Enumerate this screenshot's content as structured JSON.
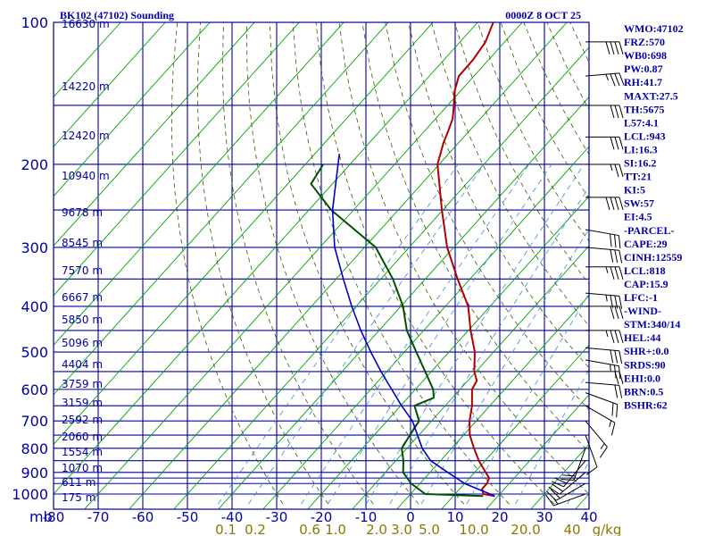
{
  "header": {
    "title": "BK102 (47102) Sounding",
    "time": "0000Z  8 OCT 25"
  },
  "axes": {
    "pressure_unit": "mb",
    "pressure_ticks": [
      "100",
      "200",
      "300",
      "400",
      "500",
      "600",
      "700",
      "800",
      "900",
      "1000"
    ],
    "temp_ticks": [
      "-80",
      "-70",
      "-60",
      "-50",
      "-40",
      "-30",
      "-20",
      "-10",
      "0",
      "10",
      "20",
      "30",
      "40"
    ],
    "mixing_unit": "g/kg",
    "mixing_ticks": [
      "0.1",
      "0.2",
      "0.6",
      "1.0",
      "2.0",
      "3.0",
      "5.0",
      "10.0",
      "20.0",
      "40"
    ],
    "height_labels": [
      "16630 m",
      "14220 m",
      "12420 m",
      "10940 m",
      "9678 m",
      "8545 m",
      "7570 m",
      "6667 m",
      "5850 m",
      "5096 m",
      "4404 m",
      "3759 m",
      "3159 m",
      "2592 m",
      "2060 m",
      "1554 m",
      "1070 m",
      "611 m",
      "175 m"
    ]
  },
  "colors": {
    "grid": "#0000a0",
    "temperature": "#b00000",
    "dewpoint": "#005000",
    "parcel": "#0000c0",
    "dry_adiabat": "#00a000",
    "moist_adiabat": "#3a5a00",
    "mixing_ratio": "#3a8ad8",
    "text": "#0000a0",
    "mixing_text": "#8a7a00"
  },
  "indices": [
    "WMO:47102",
    "FRZ:570",
    "WB0:698",
    "PW:0.87",
    "RH:41.7",
    "MAXT:27.5",
    "TH:5675",
    "L57:4.1",
    "LCL:943",
    "LI:16.3",
    "SI:16.2",
    "TT:21",
    "KI:5",
    "SW:57",
    "EI:4.5",
    "-PARCEL-",
    "CAPE:29",
    "CINH:12559",
    "LCL:818",
    "CAP:15.9",
    "LFC:-1",
    "-WIND-",
    "STM:340/14",
    "HEL:44",
    "SHR+:0.0",
    "SRDS:90",
    "EHI:0.0",
    "BRN:0.5",
    "BSHR:62"
  ],
  "chart_data": {
    "type": "line",
    "title": "BK102 (47102) Sounding",
    "xlabel": "",
    "ylabel": "mb",
    "xlim": [
      -80,
      40
    ],
    "ylim": [
      1000,
      100
    ],
    "y_scale": "log-pressure",
    "x_scale": "skew-T",
    "grid": true,
    "series": [
      {
        "key": "temperature",
        "points": [
          [
            100,
            -76.5
          ],
          [
            110,
            -74.3
          ],
          [
            120,
            -73.5
          ],
          [
            130,
            -73.4
          ],
          [
            140,
            -71.3
          ],
          [
            150,
            -68.6
          ],
          [
            160,
            -66.2
          ],
          [
            170,
            -64.7
          ],
          [
            180,
            -63.4
          ],
          [
            200,
            -60.4
          ],
          [
            250,
            -50.2
          ],
          [
            300,
            -41.5
          ],
          [
            350,
            -32.8
          ],
          [
            400,
            -24.9
          ],
          [
            450,
            -19.5
          ],
          [
            500,
            -14.2
          ],
          [
            550,
            -10.4
          ],
          [
            575,
            -8.0
          ],
          [
            600,
            -7.3
          ],
          [
            650,
            -4.0
          ],
          [
            700,
            -1.5
          ],
          [
            750,
            1.4
          ],
          [
            800,
            5.0
          ],
          [
            850,
            8.6
          ],
          [
            900,
            12.5
          ],
          [
            925,
            14.4
          ],
          [
            950,
            15.0
          ],
          [
            975,
            15.0
          ],
          [
            1000,
            16.3
          ],
          [
            1010,
            19.3
          ]
        ]
      },
      {
        "key": "dewpoint",
        "points": [
          [
            200,
            -86.0
          ],
          [
            220,
            -84.8
          ],
          [
            250,
            -75.0
          ],
          [
            300,
            -57.5
          ],
          [
            350,
            -47.3
          ],
          [
            400,
            -39.5
          ],
          [
            450,
            -33.8
          ],
          [
            500,
            -27.3
          ],
          [
            550,
            -21.4
          ],
          [
            600,
            -16.0
          ],
          [
            625,
            -14.2
          ],
          [
            650,
            -16.9
          ],
          [
            700,
            -12.8
          ],
          [
            750,
            -12.0
          ],
          [
            800,
            -11.2
          ],
          [
            850,
            -8.3
          ],
          [
            900,
            -6.0
          ],
          [
            950,
            -2.0
          ],
          [
            1000,
            3.3
          ],
          [
            1010,
            16.7
          ]
        ]
      },
      {
        "key": "parcel",
        "points": [
          [
            190,
            -84.5
          ],
          [
            250,
            -74.7
          ],
          [
            300,
            -66.7
          ],
          [
            350,
            -58.4
          ],
          [
            400,
            -51.0
          ],
          [
            450,
            -44.1
          ],
          [
            500,
            -37.5
          ],
          [
            550,
            -31.3
          ],
          [
            600,
            -25.3
          ],
          [
            650,
            -19.8
          ],
          [
            700,
            -14.3
          ],
          [
            800,
            -6.6
          ],
          [
            850,
            -2.2
          ],
          [
            900,
            4.0
          ],
          [
            950,
            10.0
          ],
          [
            1010,
            19.3
          ]
        ]
      }
    ],
    "wind_barbs": [
      {
        "p": 110,
        "dir": 270,
        "spd": 40
      },
      {
        "p": 130,
        "dir": 265,
        "spd": 35
      },
      {
        "p": 150,
        "dir": 270,
        "spd": 30
      },
      {
        "p": 175,
        "dir": 270,
        "spd": 30
      },
      {
        "p": 200,
        "dir": 270,
        "spd": 25
      },
      {
        "p": 235,
        "dir": 270,
        "spd": 40
      },
      {
        "p": 275,
        "dir": 280,
        "spd": 30
      },
      {
        "p": 300,
        "dir": 275,
        "spd": 30
      },
      {
        "p": 330,
        "dir": 270,
        "spd": 35
      },
      {
        "p": 375,
        "dir": 275,
        "spd": 35
      },
      {
        "p": 400,
        "dir": 270,
        "spd": 30
      },
      {
        "p": 450,
        "dir": 270,
        "spd": 35
      },
      {
        "p": 490,
        "dir": 275,
        "spd": 30
      },
      {
        "p": 520,
        "dir": 280,
        "spd": 25
      },
      {
        "p": 550,
        "dir": 270,
        "spd": 20
      },
      {
        "p": 580,
        "dir": 275,
        "spd": 20
      },
      {
        "p": 610,
        "dir": 290,
        "spd": 20
      },
      {
        "p": 650,
        "dir": 300,
        "spd": 15
      },
      {
        "p": 700,
        "dir": 320,
        "spd": 15
      },
      {
        "p": 750,
        "dir": 340,
        "spd": 10
      },
      {
        "p": 800,
        "dir": 20,
        "spd": 20
      },
      {
        "p": 850,
        "dir": 40,
        "spd": 20
      },
      {
        "p": 900,
        "dir": 50,
        "spd": 20
      },
      {
        "p": 950,
        "dir": 60,
        "spd": 20
      },
      {
        "p": 1000,
        "dir": 70,
        "spd": 15
      }
    ]
  }
}
